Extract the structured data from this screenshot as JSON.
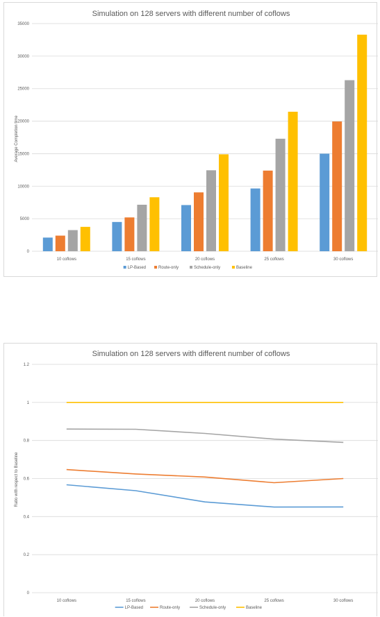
{
  "chart_data": [
    {
      "type": "bar",
      "title": "Simulation on 128 servers with different number of coflows",
      "ylabel": "Average Completion time",
      "xlabel": "",
      "ylim": [
        0,
        35000
      ],
      "yticks": [
        0,
        5000,
        10000,
        15000,
        20000,
        25000,
        30000,
        35000
      ],
      "grid": true,
      "legend": "bottom",
      "categories": [
        "10 coflows",
        "15 coflows",
        "20 coflows",
        "25 coflows",
        "30 coflows"
      ],
      "series": [
        {
          "name": "LP-Based",
          "color": "#5b9bd5",
          "values": [
            2100,
            4500,
            7100,
            9650,
            15000
          ]
        },
        {
          "name": "Route-only",
          "color": "#ed7d31",
          "values": [
            2400,
            5200,
            9050,
            12400,
            19950
          ]
        },
        {
          "name": "Schedule-only",
          "color": "#a5a5a5",
          "values": [
            3250,
            7150,
            12450,
            17300,
            26300
          ]
        },
        {
          "name": "Baseline",
          "color": "#ffc000",
          "values": [
            3750,
            8300,
            14900,
            21450,
            33300
          ]
        }
      ]
    },
    {
      "type": "line",
      "title": "Simulation on 128 servers with different number of coflows",
      "ylabel": "Ratio with respect to Baseline",
      "xlabel": "",
      "ylim": [
        0,
        1.2
      ],
      "yticks": [
        0,
        0.2,
        0.4,
        0.6,
        0.8,
        1,
        1.2
      ],
      "grid": true,
      "legend": "bottom",
      "categories": [
        "10 coflows",
        "15 coflows",
        "20 coflows",
        "25 coflows",
        "30 coflows"
      ],
      "series": [
        {
          "name": "LP-Based",
          "color": "#5b9bd5",
          "values": [
            0.567,
            0.536,
            0.477,
            0.45,
            0.451
          ]
        },
        {
          "name": "Route-only",
          "color": "#ed7d31",
          "values": [
            0.647,
            0.624,
            0.608,
            0.578,
            0.6
          ]
        },
        {
          "name": "Schedule-only",
          "color": "#a5a5a5",
          "values": [
            0.86,
            0.859,
            0.837,
            0.807,
            0.79
          ]
        },
        {
          "name": "Baseline",
          "color": "#ffc000",
          "values": [
            1,
            1,
            1,
            1,
            1
          ]
        }
      ]
    }
  ]
}
